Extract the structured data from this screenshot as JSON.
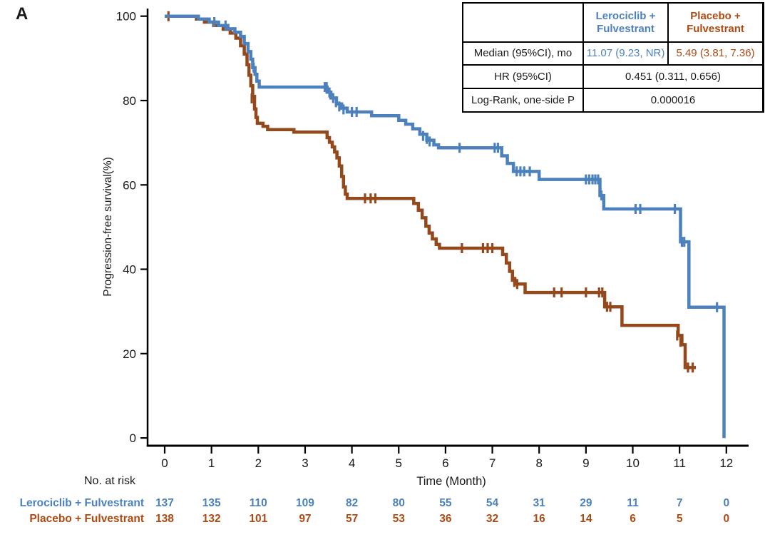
{
  "panel_label": "A",
  "colors": {
    "blue": "#4C81BD",
    "brown": "#93491B",
    "blue_text": "#4C81BD",
    "brown_text": "#AC4A12",
    "axis": "#000000",
    "text": "#1a1a1a"
  },
  "stats_table": {
    "col_headers": [
      "Lerociclib +\nFulvestrant",
      "Placebo +\nFulvestrant"
    ],
    "rows": [
      {
        "label": "Median (95%CI), mo",
        "blue_value": "11.07 (9.23, NR)",
        "brown_value": "5.49 (3.81, 7.36)"
      },
      {
        "label": "HR (95%CI)",
        "value": "0.451 (0.311, 0.656)"
      },
      {
        "label": "Log-Rank, one-side P",
        "value": "0.000016"
      }
    ]
  },
  "chart_data": {
    "type": "line",
    "subtype": "kaplan-meier-step",
    "title": "",
    "xlabel": "Time (Month)",
    "ylabel": "Progression-free survival(%)",
    "xlim": [
      0,
      12
    ],
    "xticks": [
      0,
      1,
      2,
      3,
      4,
      5,
      6,
      7,
      8,
      9,
      10,
      11,
      12
    ],
    "ylim": [
      0,
      100
    ],
    "yticks": [
      0,
      20,
      40,
      60,
      80,
      100
    ],
    "grid": false,
    "legend_position": "none",
    "series": [
      {
        "name": "Lerociclib + Fulvestrant",
        "color_key": "blue",
        "steps": [
          [
            0,
            100
          ],
          [
            0.72,
            99.3
          ],
          [
            0.95,
            98.6
          ],
          [
            1.15,
            97.8
          ],
          [
            1.35,
            97.0
          ],
          [
            1.5,
            96.2
          ],
          [
            1.62,
            95.2
          ],
          [
            1.7,
            93.5
          ],
          [
            1.78,
            91.6
          ],
          [
            1.84,
            89.8
          ],
          [
            1.88,
            87.8
          ],
          [
            1.93,
            86.2
          ],
          [
            1.97,
            84.6
          ],
          [
            2.02,
            83.2
          ],
          [
            3.47,
            82.0
          ],
          [
            3.55,
            80.6
          ],
          [
            3.67,
            79.2
          ],
          [
            3.78,
            78.2
          ],
          [
            3.9,
            77.3
          ],
          [
            4.42,
            76.4
          ],
          [
            5.0,
            75.3
          ],
          [
            5.15,
            74.4
          ],
          [
            5.3,
            73.3
          ],
          [
            5.45,
            72.0
          ],
          [
            5.6,
            70.6
          ],
          [
            5.75,
            69.5
          ],
          [
            5.85,
            68.8
          ],
          [
            7.2,
            66.9
          ],
          [
            7.32,
            65.1
          ],
          [
            7.45,
            63.2
          ],
          [
            8.0,
            61.3
          ],
          [
            9.3,
            57.5
          ],
          [
            9.38,
            54.3
          ],
          [
            11.02,
            46.5
          ],
          [
            11.2,
            31.0
          ],
          [
            11.95,
            0
          ]
        ],
        "censors": [
          [
            1.06,
            98.6
          ],
          [
            1.3,
            97.8
          ],
          [
            1.9,
            87.8
          ],
          [
            3.42,
            83.2
          ],
          [
            3.46,
            83.2
          ],
          [
            3.52,
            81.9
          ],
          [
            3.6,
            80.6
          ],
          [
            3.66,
            79.6
          ],
          [
            3.73,
            78.6
          ],
          [
            3.82,
            77.9
          ],
          [
            4.0,
            77.3
          ],
          [
            4.1,
            77.3
          ],
          [
            5.52,
            71.6
          ],
          [
            5.6,
            70.9
          ],
          [
            5.66,
            70.3
          ],
          [
            6.3,
            68.8
          ],
          [
            7.05,
            68.8
          ],
          [
            7.12,
            68.8
          ],
          [
            7.52,
            63.2
          ],
          [
            7.6,
            63.2
          ],
          [
            7.68,
            63.2
          ],
          [
            7.8,
            63.2
          ],
          [
            9.0,
            61.3
          ],
          [
            9.07,
            61.3
          ],
          [
            9.14,
            61.3
          ],
          [
            9.2,
            61.3
          ],
          [
            9.26,
            61.3
          ],
          [
            9.33,
            57.5
          ],
          [
            10.06,
            54.3
          ],
          [
            10.16,
            54.3
          ],
          [
            10.9,
            54.3
          ],
          [
            11.05,
            46.5
          ],
          [
            11.1,
            46.5
          ],
          [
            11.8,
            31.0
          ]
        ]
      },
      {
        "name": "Placebo + Fulvestrant",
        "color_key": "brown",
        "steps": [
          [
            0,
            100
          ],
          [
            0.68,
            99.3
          ],
          [
            0.85,
            98.6
          ],
          [
            1.05,
            97.8
          ],
          [
            1.25,
            96.9
          ],
          [
            1.4,
            96.0
          ],
          [
            1.52,
            94.8
          ],
          [
            1.62,
            93.0
          ],
          [
            1.7,
            91.0
          ],
          [
            1.76,
            88.5
          ],
          [
            1.8,
            86.0
          ],
          [
            1.84,
            83.5
          ],
          [
            1.88,
            81.0
          ],
          [
            1.92,
            78.0
          ],
          [
            1.95,
            76.0
          ],
          [
            1.98,
            74.6
          ],
          [
            2.1,
            73.9
          ],
          [
            2.2,
            73.1
          ],
          [
            2.76,
            72.5
          ],
          [
            3.47,
            71.2
          ],
          [
            3.52,
            70.1
          ],
          [
            3.58,
            69.0
          ],
          [
            3.63,
            67.8
          ],
          [
            3.68,
            66.4
          ],
          [
            3.73,
            64.5
          ],
          [
            3.78,
            62.0
          ],
          [
            3.82,
            59.5
          ],
          [
            3.86,
            57.8
          ],
          [
            3.9,
            56.8
          ],
          [
            5.32,
            55.6
          ],
          [
            5.42,
            54.0
          ],
          [
            5.5,
            52.2
          ],
          [
            5.58,
            50.2
          ],
          [
            5.65,
            48.6
          ],
          [
            5.72,
            47.2
          ],
          [
            5.8,
            45.9
          ],
          [
            5.87,
            45.0
          ],
          [
            7.22,
            43.5
          ],
          [
            7.3,
            41.5
          ],
          [
            7.37,
            39.5
          ],
          [
            7.43,
            37.8
          ],
          [
            7.48,
            36.5
          ],
          [
            7.7,
            34.5
          ],
          [
            9.4,
            31.1
          ],
          [
            9.77,
            26.7
          ],
          [
            10.97,
            24.3
          ],
          [
            11.05,
            22.1
          ],
          [
            11.12,
            16.7
          ],
          [
            11.35,
            16.7
          ]
        ],
        "censors": [
          [
            0.08,
            100
          ],
          [
            1.86,
            80.5
          ],
          [
            4.28,
            56.8
          ],
          [
            4.4,
            56.8
          ],
          [
            4.5,
            56.8
          ],
          [
            6.35,
            45.0
          ],
          [
            6.8,
            45.0
          ],
          [
            6.9,
            45.0
          ],
          [
            7.0,
            45.0
          ],
          [
            7.42,
            38.2
          ],
          [
            7.47,
            37.0
          ],
          [
            7.53,
            36.5
          ],
          [
            8.32,
            34.5
          ],
          [
            8.48,
            34.5
          ],
          [
            9.0,
            34.5
          ],
          [
            9.28,
            34.5
          ],
          [
            9.35,
            34.5
          ],
          [
            9.45,
            31.1
          ],
          [
            9.52,
            31.1
          ],
          [
            10.95,
            24.3
          ],
          [
            11.02,
            22.8
          ],
          [
            11.18,
            16.7
          ],
          [
            11.28,
            16.7
          ]
        ]
      }
    ]
  },
  "risk_table": {
    "title": "No. at risk",
    "rows": [
      {
        "label": "Lerociclib + Fulvestrant",
        "color_key": "blue",
        "values": [
          137,
          135,
          110,
          109,
          82,
          80,
          55,
          54,
          31,
          29,
          11,
          7,
          0
        ]
      },
      {
        "label": "Placebo + Fulvestrant",
        "color_key": "brown",
        "values": [
          138,
          132,
          101,
          97,
          57,
          53,
          36,
          32,
          16,
          14,
          6,
          5,
          0
        ]
      }
    ]
  }
}
